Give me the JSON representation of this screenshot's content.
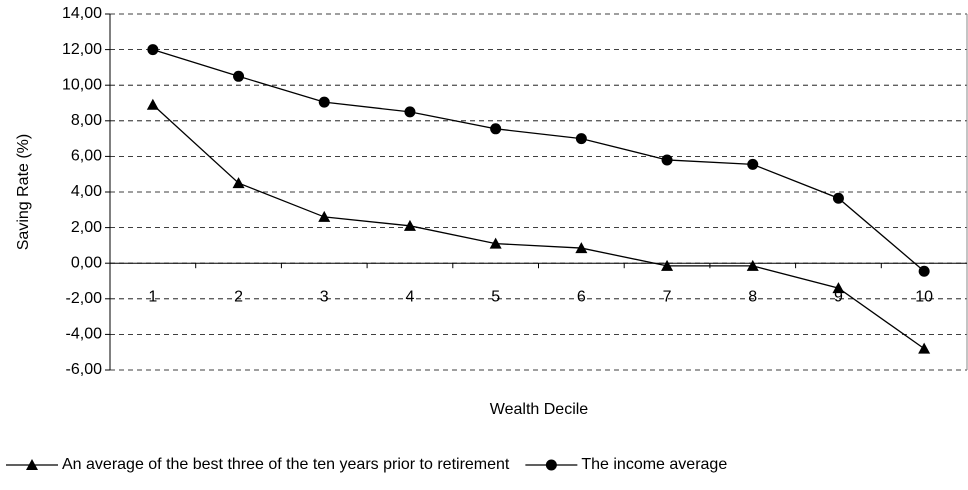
{
  "chart_data": {
    "type": "line",
    "x_label": "Wealth Decile",
    "y_label": "Saving Rate (%)",
    "categories": [
      "1",
      "2",
      "3",
      "4",
      "5",
      "6",
      "7",
      "8",
      "9",
      "10"
    ],
    "series": [
      {
        "name": "An average of the best three of the ten years prior to retirement",
        "color": "#000000",
        "marker": "triangle",
        "values": [
          8.9,
          4.5,
          2.6,
          2.1,
          1.1,
          0.85,
          -0.15,
          -0.15,
          -1.4,
          -4.8
        ]
      },
      {
        "name": "The income average",
        "color": "#000000",
        "marker": "circle",
        "values": [
          12.0,
          10.5,
          9.05,
          8.5,
          7.55,
          7.0,
          5.8,
          5.55,
          3.65,
          -0.45
        ]
      }
    ],
    "ylim": [
      -6,
      14
    ],
    "yticks": [
      {
        "value": -6,
        "label": "-6,00"
      },
      {
        "value": -4,
        "label": "-4,00"
      },
      {
        "value": -2,
        "label": "-2,00"
      },
      {
        "value": 0,
        "label": "0,00"
      },
      {
        "value": 2,
        "label": "2,00"
      },
      {
        "value": 4,
        "label": "4,00"
      },
      {
        "value": 6,
        "label": "6,00"
      },
      {
        "value": 8,
        "label": "8,00"
      },
      {
        "value": 10,
        "label": "10,00"
      },
      {
        "value": 12,
        "label": "12,00"
      },
      {
        "value": 14,
        "label": "14,00"
      }
    ],
    "grid": true
  }
}
